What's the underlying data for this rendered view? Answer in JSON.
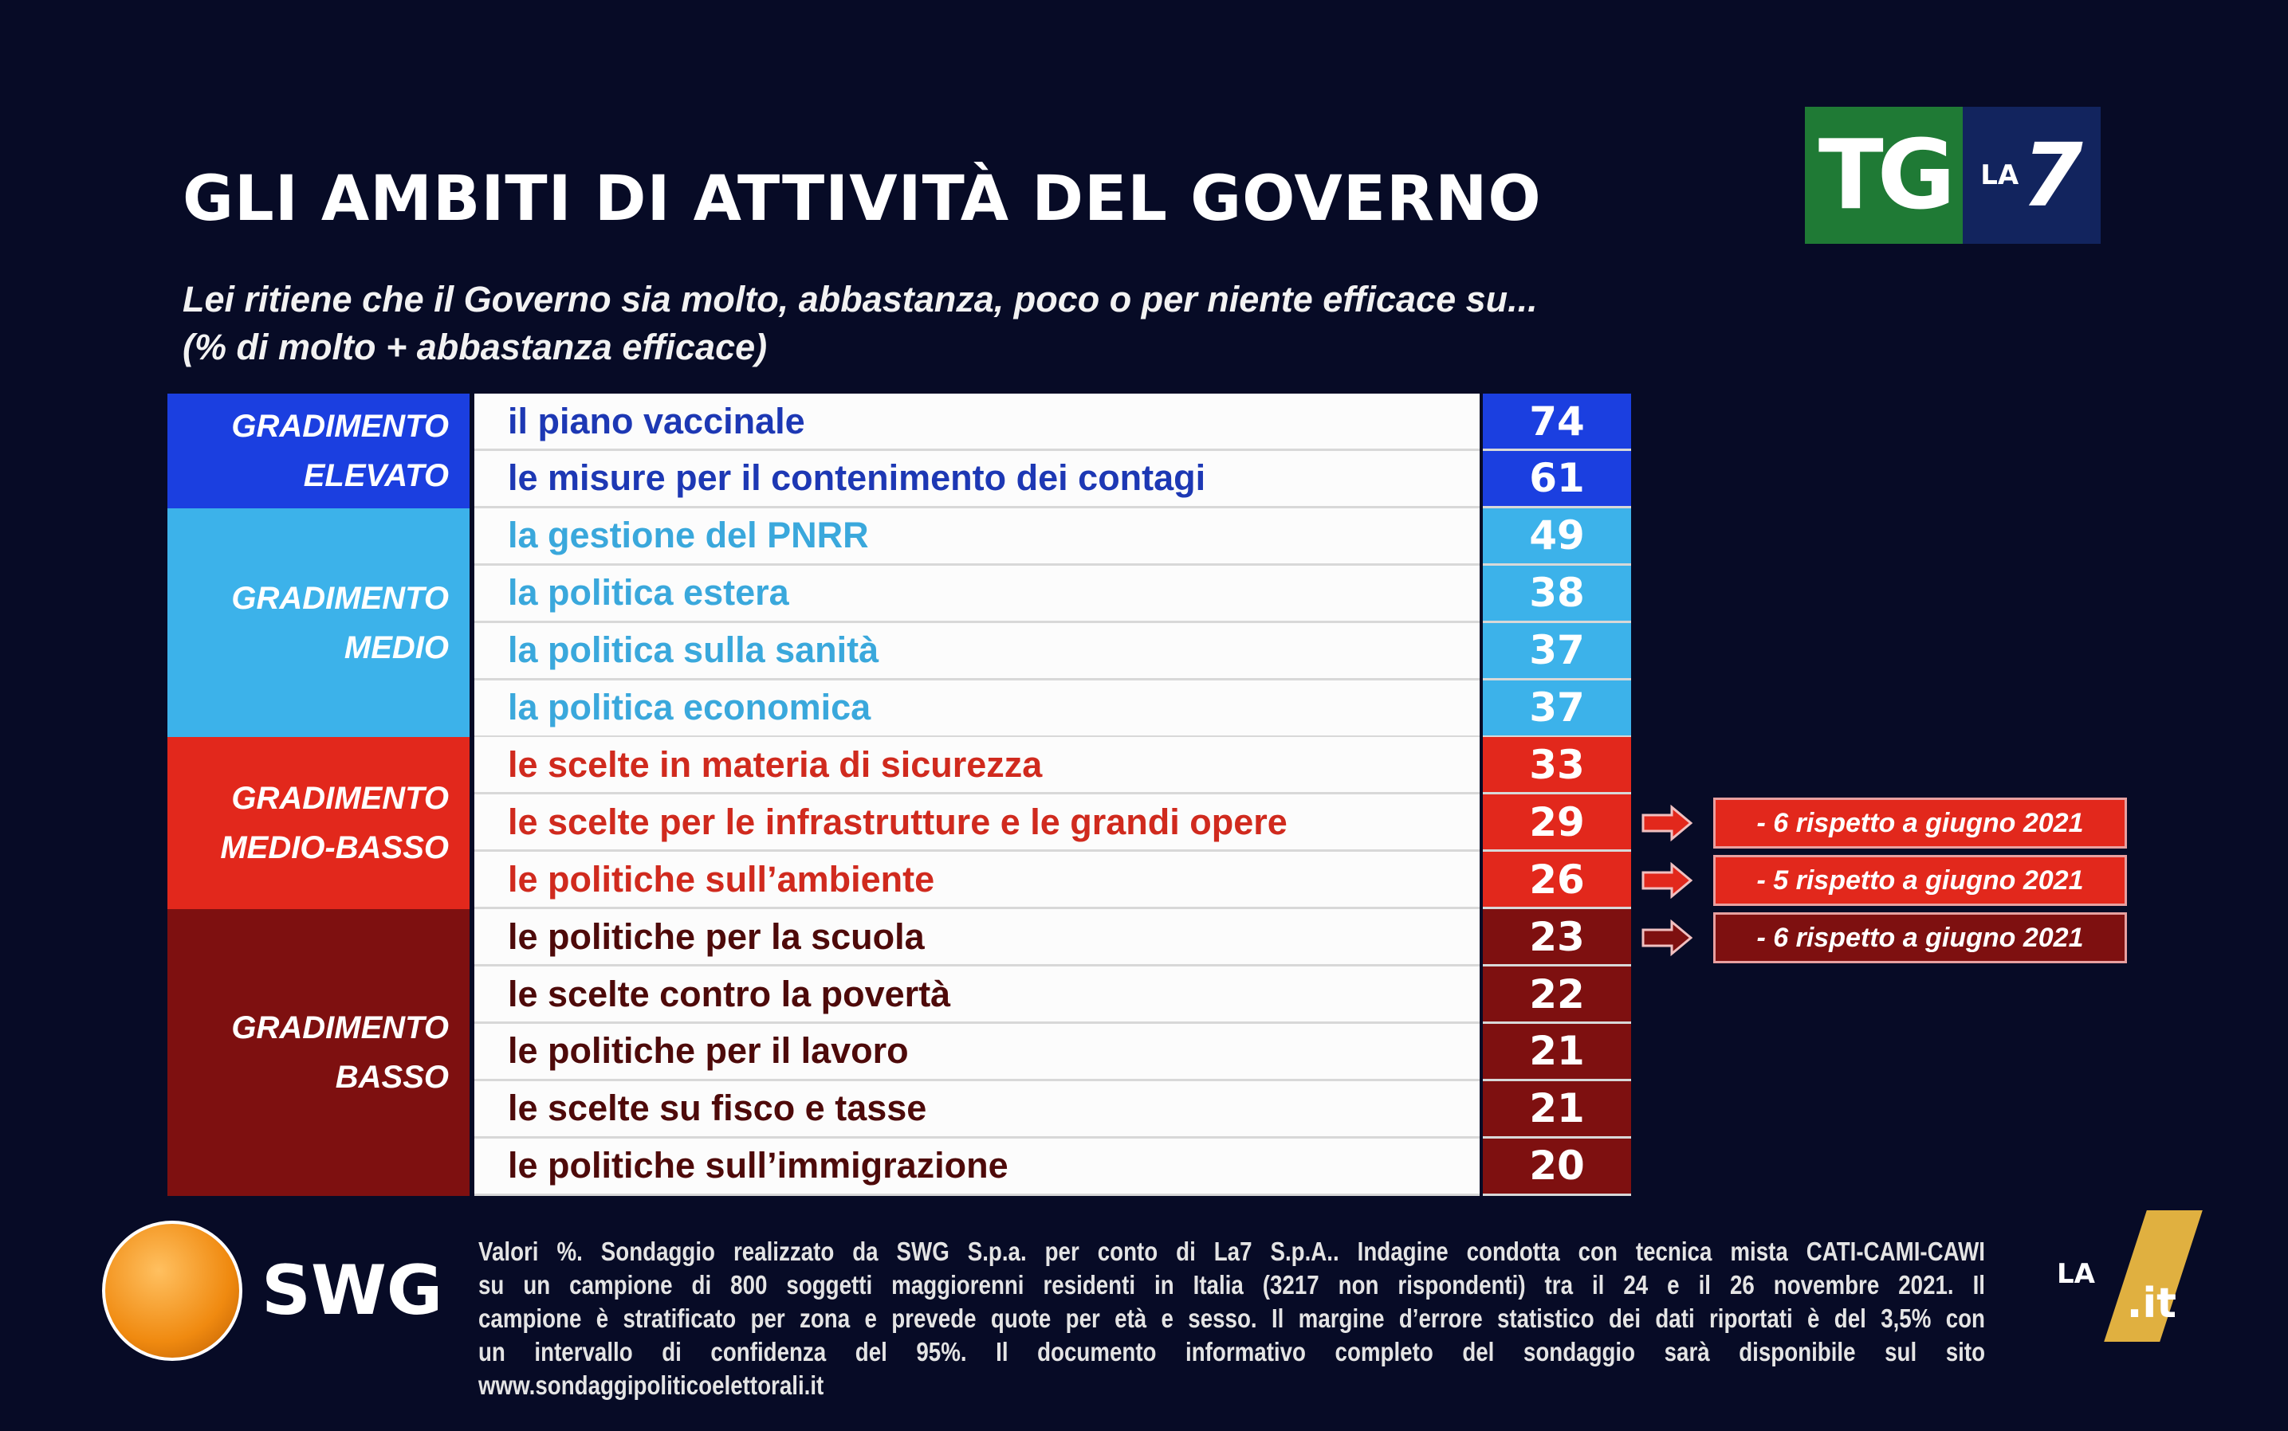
{
  "title": "GLI AMBITI DI ATTIVITÀ DEL GOVERNO",
  "subtitle": [
    "Lei ritiene che il Governo sia molto, abbastanza, poco o per niente efficace su...",
    "(% di molto + abbastanza efficace)"
  ],
  "logo": {
    "tg": "TG",
    "la": "LA",
    "seven": "7"
  },
  "colors": {
    "background": "#070b26",
    "elevato": "#1b3fe0",
    "medio": "#3cb2ea",
    "medio_basso": "#e2281c",
    "basso": "#7e1010"
  },
  "categories": [
    {
      "lines": [
        "GRADIMENTO",
        "ELEVATO"
      ],
      "rows": 2,
      "color": "#1b3fe0",
      "text": "#1d38b4"
    },
    {
      "lines": [
        "GRADIMENTO",
        "MEDIO"
      ],
      "rows": 4,
      "color": "#3cb2ea",
      "text": "#3aa8dc"
    },
    {
      "lines": [
        "GRADIMENTO",
        "MEDIO-BASSO"
      ],
      "rows": 3,
      "color": "#e2281c",
      "text": "#d02a1e"
    },
    {
      "lines": [
        "GRADIMENTO",
        "BASSO"
      ],
      "rows": 5,
      "color": "#7e1010",
      "text": "#4e0a0a"
    }
  ],
  "rows": [
    {
      "label": "il piano vaccinale",
      "value": "74"
    },
    {
      "label": "le misure per il contenimento dei contagi",
      "value": "61"
    },
    {
      "label": "la gestione del PNRR",
      "value": "49"
    },
    {
      "label": "la politica estera",
      "value": "38"
    },
    {
      "label": "la politica sulla sanità",
      "value": "37"
    },
    {
      "label": "la politica economica",
      "value": "37"
    },
    {
      "label": "le scelte in materia di sicurezza",
      "value": "33"
    },
    {
      "label": "le scelte per le infrastrutture e le grandi opere",
      "value": "29"
    },
    {
      "label": "le politiche sull’ambiente",
      "value": "26"
    },
    {
      "label": "le politiche per la scuola",
      "value": "23"
    },
    {
      "label": "le scelte contro la povertà",
      "value": "22"
    },
    {
      "label": "le politiche per il lavoro",
      "value": "21"
    },
    {
      "label": "le scelte su fisco e tasse",
      "value": "21"
    },
    {
      "label": "le politiche sull’immigrazione",
      "value": "20"
    }
  ],
  "notes": [
    {
      "row": 7,
      "text": "- 6 rispetto a giugno 2021",
      "color": "#e2281c"
    },
    {
      "row": 8,
      "text": "- 5 rispetto a giugno 2021",
      "color": "#e2281c"
    },
    {
      "row": 9,
      "text": "- 6 rispetto a giugno 2021",
      "color": "#7e1010"
    }
  ],
  "swg": "SWG",
  "footer": [
    "Valori %. Sondaggio realizzato da SWG S.p.a. per conto di La7 S.p.A.. Indagine condotta con tecnica mista CATI-CAMI-CAWI",
    "su un campione di 800 soggetti maggiorenni residenti in Italia (3217 non rispondenti) tra il 24 e il 26 novembre 2021. Il",
    "campione è stratificato per zona e prevede quote per età e sesso. Il margine d’errore statistico dei dati riportati è del 3,5% con",
    "un intervallo di confidenza del 95%. Il documento informativo completo del sondaggio sarà disponibile sul sito",
    "www.sondaggipoliticoelettorali.it"
  ],
  "watermark": {
    "la": "LA",
    "it": ".it"
  }
}
